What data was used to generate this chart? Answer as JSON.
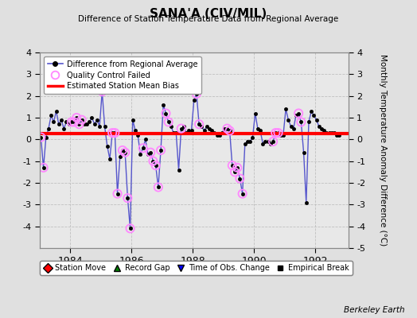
{
  "title": "SANA'A (CIV/MIL)",
  "subtitle": "Difference of Station Temperature Data from Regional Average",
  "ylabel": "Monthly Temperature Anomaly Difference (°C)",
  "credit": "Berkeley Earth",
  "bias_value": 0.27,
  "ylim": [
    -5,
    4
  ],
  "xlim_start": 1983.0,
  "xlim_end": 1993.08,
  "bg_color": "#e0e0e0",
  "plot_bg_color": "#e8e8e8",
  "line_color": "#5555cc",
  "marker_color": "#000000",
  "bias_color": "#ff0000",
  "qc_color": "#ff88ff",
  "xticks": [
    1984,
    1986,
    1988,
    1990,
    1992
  ],
  "yticks_left": [
    -4,
    -3,
    -2,
    -1,
    0,
    1,
    2,
    3,
    4
  ],
  "yticks_right": [
    -5,
    -4,
    -3,
    -2,
    -1,
    0,
    1,
    2,
    3,
    4
  ],
  "time_series": [
    1983.042,
    1983.125,
    1983.208,
    1983.292,
    1983.375,
    1983.458,
    1983.542,
    1983.625,
    1983.708,
    1983.792,
    1983.875,
    1983.958,
    1984.042,
    1984.125,
    1984.208,
    1984.292,
    1984.375,
    1984.458,
    1984.542,
    1984.625,
    1984.708,
    1984.792,
    1984.875,
    1984.958,
    1985.042,
    1985.125,
    1985.208,
    1985.292,
    1985.375,
    1985.458,
    1985.542,
    1985.625,
    1985.708,
    1985.792,
    1985.875,
    1985.958,
    1986.042,
    1986.125,
    1986.208,
    1986.292,
    1986.375,
    1986.458,
    1986.542,
    1986.625,
    1986.708,
    1986.792,
    1986.875,
    1986.958,
    1987.042,
    1987.125,
    1987.208,
    1987.292,
    1987.375,
    1987.458,
    1987.542,
    1987.625,
    1987.708,
    1987.792,
    1987.875,
    1987.958,
    1988.042,
    1988.125,
    1988.208,
    1988.292,
    1988.375,
    1988.458,
    1988.542,
    1988.625,
    1988.708,
    1988.792,
    1988.875,
    1988.958,
    1989.042,
    1989.125,
    1989.208,
    1989.292,
    1989.375,
    1989.458,
    1989.542,
    1989.625,
    1989.708,
    1989.792,
    1989.875,
    1989.958,
    1990.042,
    1990.125,
    1990.208,
    1990.292,
    1990.375,
    1990.458,
    1990.542,
    1990.625,
    1990.708,
    1990.792,
    1990.875,
    1990.958,
    1991.042,
    1991.125,
    1991.208,
    1991.292,
    1991.375,
    1991.458,
    1991.542,
    1991.625,
    1991.708,
    1991.792,
    1991.875,
    1991.958,
    1992.042,
    1992.125,
    1992.208,
    1992.292,
    1992.375,
    1992.458,
    1992.542,
    1992.625,
    1992.708,
    1992.792
  ],
  "values": [
    0.1,
    -1.3,
    0.1,
    0.5,
    1.1,
    0.8,
    1.3,
    0.7,
    0.9,
    0.5,
    0.8,
    0.7,
    0.8,
    0.8,
    1.0,
    0.7,
    0.9,
    0.7,
    0.7,
    0.8,
    1.0,
    0.7,
    0.9,
    0.6,
    2.2,
    0.6,
    -0.3,
    -0.9,
    0.3,
    0.3,
    -2.5,
    -0.8,
    -0.5,
    -0.6,
    -2.7,
    -4.1,
    0.9,
    0.4,
    0.2,
    -0.7,
    -0.4,
    0.0,
    -0.7,
    -0.6,
    -1.0,
    -1.2,
    -2.2,
    -0.5,
    1.6,
    1.2,
    0.8,
    0.6,
    0.3,
    0.3,
    -1.4,
    0.5,
    0.6,
    0.3,
    0.4,
    0.4,
    1.8,
    2.1,
    0.7,
    0.6,
    0.4,
    0.6,
    0.5,
    0.4,
    0.3,
    0.2,
    0.2,
    0.3,
    0.5,
    0.5,
    0.4,
    -1.2,
    -1.5,
    -1.3,
    -1.8,
    -2.5,
    -0.2,
    -0.1,
    -0.1,
    0.1,
    1.2,
    0.5,
    0.4,
    -0.2,
    -0.1,
    -0.1,
    -0.2,
    -0.1,
    0.3,
    0.3,
    0.2,
    0.2,
    1.4,
    0.9,
    0.6,
    0.5,
    1.1,
    1.2,
    0.8,
    -0.6,
    -2.9,
    0.8,
    1.3,
    1.1,
    0.9,
    0.6,
    0.5,
    0.4,
    0.3,
    0.3,
    0.3,
    0.3,
    0.2,
    0.2
  ],
  "qc_failed_indices": [
    0,
    1,
    12,
    13,
    14,
    15,
    16,
    24,
    28,
    29,
    30,
    32,
    33,
    34,
    35,
    40,
    43,
    44,
    45,
    46,
    47,
    49,
    50,
    55,
    61,
    62,
    73,
    74,
    75,
    76,
    77,
    78,
    79,
    91,
    92,
    93,
    101,
    102
  ]
}
